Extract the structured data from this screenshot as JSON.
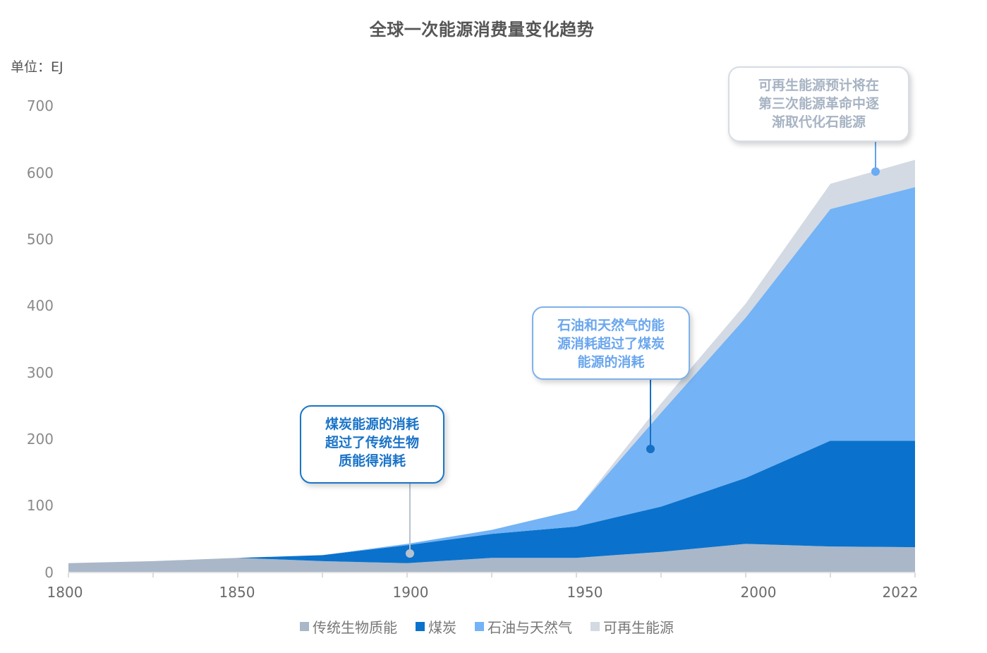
{
  "title": "全球一次能源消费量变化趋势",
  "unit_label": "单位：EJ",
  "y_ticks": [
    "700",
    "600",
    "500",
    "400",
    "300",
    "200",
    "100",
    "0"
  ],
  "x_ticks": [
    "1800",
    "1850",
    "1900",
    "1950",
    "2000",
    "2022"
  ],
  "legend": [
    {
      "label": "传统生物质能",
      "color": "#a9b7c9"
    },
    {
      "label": "煤炭",
      "color": "#0a72cc"
    },
    {
      "label": "石油与天然气",
      "color": "#74b3f5"
    },
    {
      "label": "可再生能源",
      "color": "#d3dae3"
    }
  ],
  "callouts": {
    "coal": [
      "煤炭能源的消耗",
      "超过了传统生物",
      "质能得消耗"
    ],
    "oil": [
      "石油和天然气的能",
      "源消耗超过了煤炭",
      "能源的消耗"
    ],
    "renew": [
      "可再生能源预计将在",
      "第三次能源革命中逐",
      "渐取代化石能源"
    ]
  },
  "chart_data": {
    "type": "area",
    "stacked": true,
    "title": "全球一次能源消费量变化趋势",
    "xlabel": "",
    "ylabel": "单位：EJ",
    "ylim": [
      0,
      700
    ],
    "yticks": [
      0,
      100,
      200,
      300,
      400,
      500,
      600,
      700
    ],
    "grid": false,
    "legend_position": "bottom",
    "categories": [
      "1800",
      "1825",
      "1850",
      "1875",
      "1900",
      "1925",
      "1950",
      "1975",
      "2000",
      "2011",
      "2022"
    ],
    "x_tick_labels_shown": [
      "1800",
      "1850",
      "1900",
      "1950",
      "2000",
      "2022"
    ],
    "series": [
      {
        "name": "传统生物质能",
        "color": "#a9b7c9",
        "values": [
          13,
          16,
          21,
          16,
          13,
          21,
          21,
          30,
          42,
          38,
          37
        ]
      },
      {
        "name": "煤炭",
        "color": "#0a72cc",
        "values": [
          0,
          0,
          0,
          9,
          27,
          36,
          47,
          68,
          99,
          159,
          160
        ]
      },
      {
        "name": "石油与天然气",
        "color": "#74b3f5",
        "values": [
          0,
          0,
          0,
          0,
          2,
          6,
          25,
          141,
          241,
          348,
          381
        ]
      },
      {
        "name": "可再生能源",
        "color": "#d3dae3",
        "values": [
          0,
          0,
          0,
          0,
          0,
          0,
          0,
          14,
          21,
          38,
          41
        ]
      }
    ],
    "annotations": [
      {
        "x": "1900",
        "text": "煤炭能源的消耗超过了传统生物质能得消耗"
      },
      {
        "x": "1975",
        "text": "石油和天然气的能源消耗超过了煤炭能源的消耗"
      },
      {
        "x": "2022",
        "text": "可再生能源预计将在第三次能源革命中逐渐取代化石能源"
      }
    ]
  }
}
